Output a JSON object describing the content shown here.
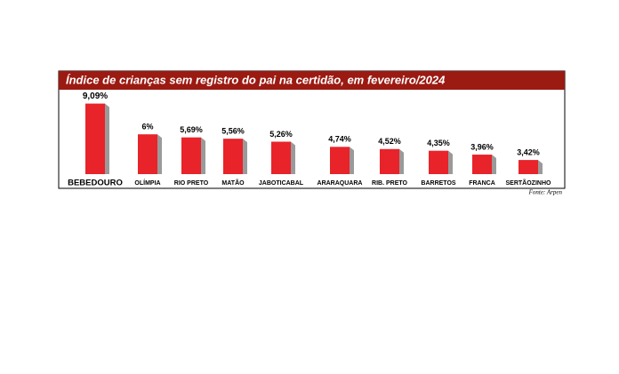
{
  "chart_data": {
    "type": "bar",
    "title": "Índice de crianças sem registro do pai na certidão, em fevereiro/2024",
    "categories": [
      "BEBEDOURO",
      "OLÍMPIA",
      "RIO PRETO",
      "MATÃO",
      "JABOTICABAL",
      "ARARAQUARA",
      "RIB. PRETO",
      "BARRETOS",
      "FRANCA",
      "SERTÃOZINHO"
    ],
    "values": [
      9.09,
      6,
      5.69,
      5.56,
      5.26,
      4.74,
      4.52,
      4.35,
      3.96,
      3.42
    ],
    "value_labels": [
      "9,09%",
      "6%",
      "5,69%",
      "5,56%",
      "5,26%",
      "4,74%",
      "4,52%",
      "4,35%",
      "3,96%",
      "3,42%"
    ],
    "color": "#e8232a",
    "ylim": [
      2,
      9.5
    ],
    "source": "Fonte: Arpen"
  }
}
